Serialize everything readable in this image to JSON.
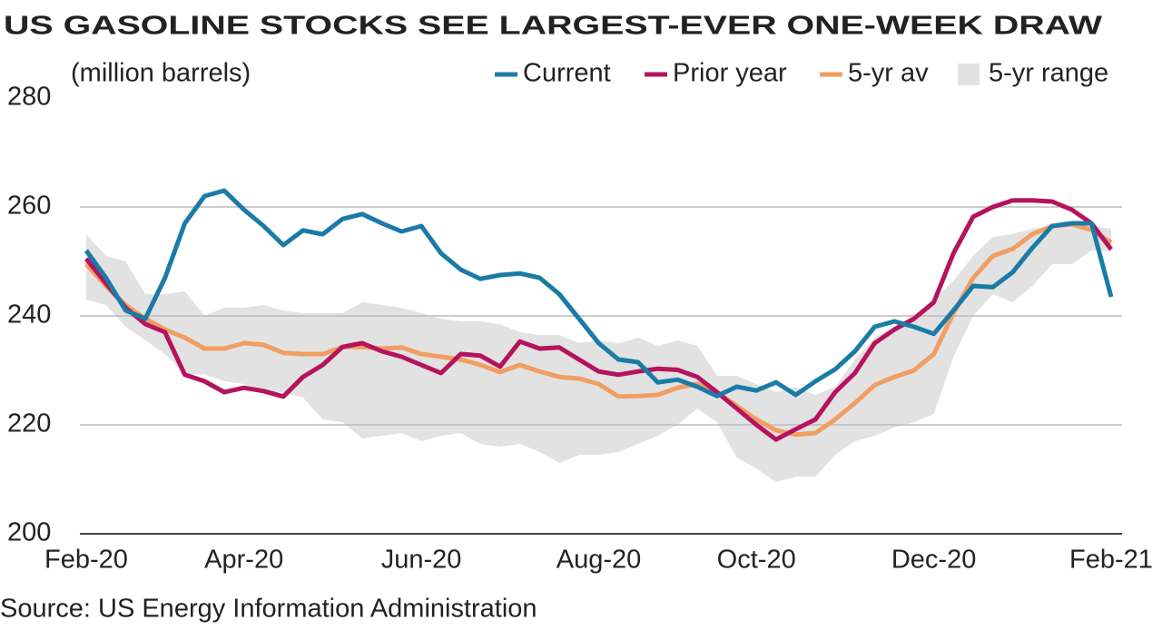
{
  "chart_data": {
    "type": "line",
    "title": "US GASOLINE STOCKS SEE LARGEST-EVER ONE-WEEK DRAW",
    "subtitle": "(million barrels)",
    "source": "Source: US Energy Information Administration",
    "categories": [
      "Feb-20",
      null,
      null,
      null,
      null,
      null,
      null,
      null,
      "Apr-20",
      null,
      null,
      null,
      null,
      null,
      null,
      null,
      null,
      "Jun-20",
      null,
      null,
      null,
      null,
      null,
      null,
      null,
      null,
      "Aug-20",
      null,
      null,
      null,
      null,
      null,
      null,
      null,
      "Oct-20",
      null,
      null,
      null,
      null,
      null,
      null,
      null,
      null,
      "Dec-20",
      null,
      null,
      null,
      null,
      null,
      null,
      null,
      null,
      "Feb-21"
    ],
    "ylim": [
      200,
      280
    ],
    "yticks": [
      200,
      220,
      240,
      260,
      280
    ],
    "grid": true,
    "legend": "top-right",
    "series": [
      {
        "name": "Current",
        "color": "#1a7ba6",
        "values": [
          252,
          247,
          241,
          239.5,
          247,
          257,
          262,
          263,
          259.5,
          256.5,
          253,
          255.7,
          255,
          257.8,
          258.7,
          257,
          255.5,
          256.5,
          251.5,
          248.5,
          246.8,
          247.5,
          247.8,
          247,
          244,
          239.5,
          235,
          232,
          231.5,
          227.8,
          228.3,
          227,
          225.3,
          227,
          226.3,
          227.8,
          225.5,
          228,
          230.2,
          233.5,
          238,
          239,
          238,
          236.7,
          241,
          245.5,
          245.3,
          248,
          252.5,
          256.5,
          257,
          257,
          243.5
        ]
      },
      {
        "name": "Prior year",
        "color": "#b5135e",
        "values": [
          250.5,
          246,
          241.5,
          238.5,
          237,
          229.2,
          228,
          226,
          226.8,
          226.2,
          225.2,
          228.8,
          231,
          234.3,
          235,
          233.5,
          232.5,
          231,
          229.5,
          233,
          232.7,
          230.7,
          235.3,
          234,
          234.2,
          232,
          229.8,
          229.2,
          229.8,
          230.3,
          230.1,
          228.8,
          226,
          223,
          220,
          217.3,
          219.2,
          221,
          226,
          229.5,
          235,
          237.5,
          239.5,
          242.5,
          251.5,
          258.2,
          260,
          261.2,
          261.2,
          261,
          259.5,
          257,
          252.2
        ]
      },
      {
        "name": "5-yr av",
        "color": "#f29e63",
        "values": [
          249.5,
          245.5,
          242,
          239.5,
          237.5,
          236,
          234,
          234,
          235,
          234.7,
          233.2,
          233,
          233,
          234.3,
          234.3,
          234,
          234.2,
          233,
          232.5,
          232,
          231,
          229.7,
          231,
          229.8,
          228.8,
          228.5,
          227.5,
          225.2,
          225.3,
          225.5,
          226.8,
          227.5,
          226,
          223.5,
          221,
          219,
          218.2,
          218.5,
          221,
          224,
          227.3,
          228.8,
          230,
          233,
          240.5,
          247,
          251,
          252.3,
          255,
          256.5,
          256.8,
          255.8,
          253.5
        ]
      },
      {
        "name": "5-yr range",
        "color": "#e2e2e2",
        "high": [
          255,
          251,
          250,
          244,
          244,
          244.5,
          240,
          241.5,
          241.5,
          242,
          241,
          240.5,
          240.5,
          240.5,
          242.5,
          242,
          241.5,
          240.5,
          239.5,
          239,
          239,
          238.5,
          237,
          236.5,
          236.5,
          235,
          235.5,
          235,
          236,
          234.5,
          235.5,
          234.5,
          229,
          229,
          227.5,
          226,
          227,
          225.5,
          227,
          232,
          236,
          238,
          240,
          243,
          246.5,
          251,
          254.5,
          255,
          256,
          256.5,
          257,
          256.5,
          256
        ],
        "low": [
          243,
          242,
          238,
          235.5,
          233,
          229.3,
          229.3,
          228,
          227.5,
          226,
          226,
          225,
          221,
          220.5,
          217.5,
          218,
          218.5,
          217,
          218,
          218.5,
          216.5,
          216,
          216.5,
          215,
          213,
          214.5,
          214.5,
          215,
          216.5,
          218,
          220,
          223,
          220.5,
          214,
          212,
          209.5,
          210.5,
          210.5,
          214.5,
          217,
          218,
          219.5,
          220.5,
          222,
          232.5,
          240,
          244,
          242.5,
          245.5,
          249.5,
          249.5,
          252,
          252
        ]
      }
    ]
  }
}
